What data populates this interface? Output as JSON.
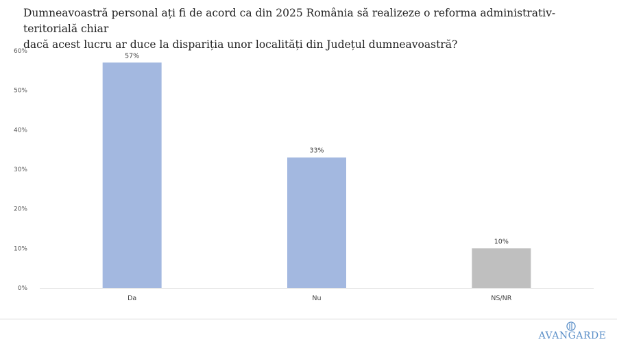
{
  "title_lines": [
    "Dumneavoastră personal ați fi de acord ca din 2025 România să realizeze o reforma administrativ- teritorială chiar",
    "dacă acest lucru ar duce la dispariția unor localități din Județul dumneavoastră?"
  ],
  "chart_data": {
    "type": "bar",
    "categories": [
      "Da",
      "Nu",
      "NS/NR"
    ],
    "values": [
      57,
      33,
      10
    ],
    "data_labels": [
      "57%",
      "33%",
      "10%"
    ],
    "colors": [
      "#a3b8e0",
      "#a3b8e0",
      "#bfbfbf"
    ],
    "ylim": [
      0,
      60
    ],
    "yticks": [
      0,
      10,
      20,
      30,
      40,
      50,
      60
    ],
    "ytick_labels": [
      "0%",
      "10%",
      "20%",
      "30%",
      "40%",
      "50%",
      "60%"
    ],
    "grid": false,
    "xlabel": "",
    "ylabel": ""
  },
  "logo": {
    "text": "AVANGARDE",
    "color": "#5b8fc8"
  }
}
